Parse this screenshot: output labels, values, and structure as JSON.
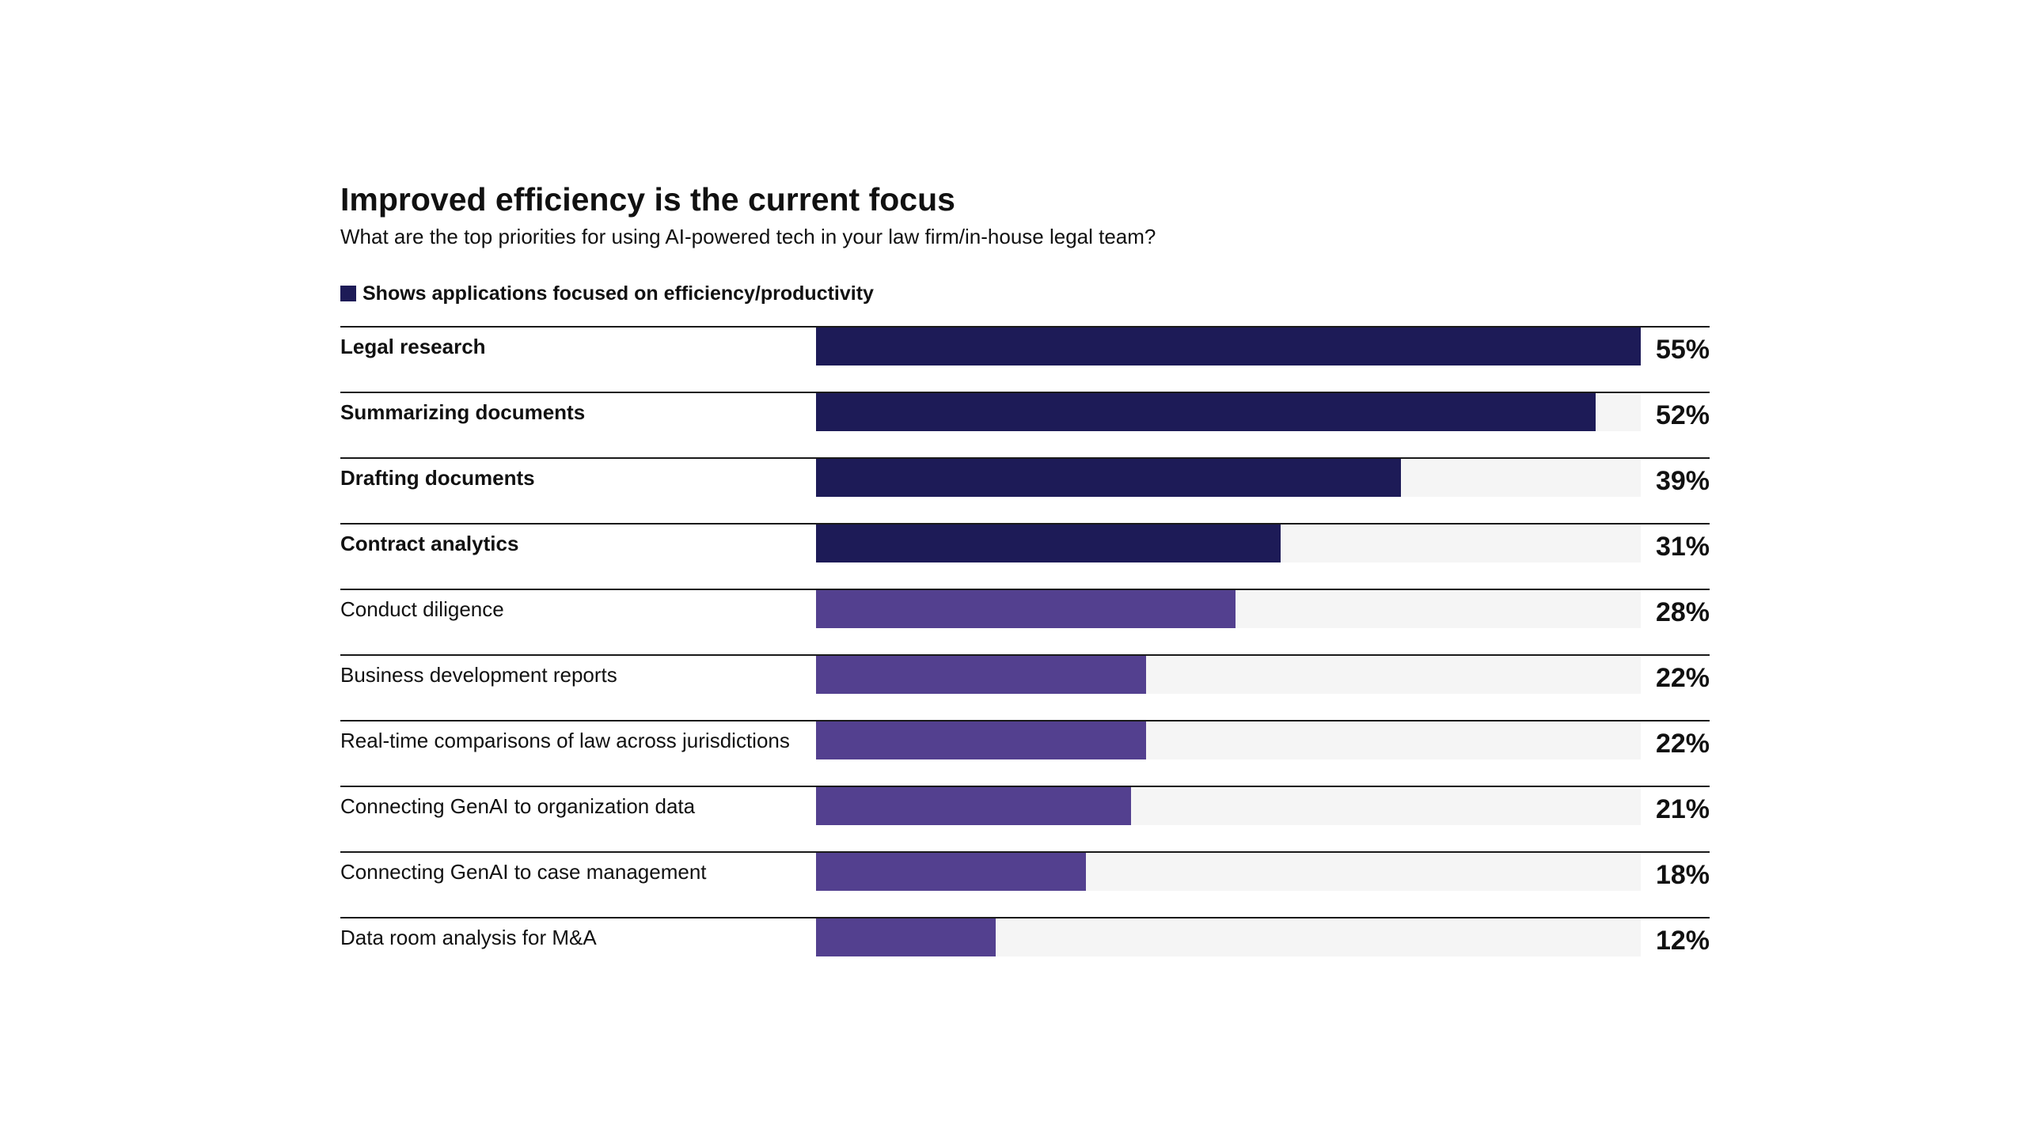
{
  "chart_data": {
    "type": "bar",
    "orientation": "horizontal",
    "title": "Improved efficiency is the current focus",
    "subtitle": "What are the top priorities for using AI-powered tech in your law firm/in-house legal team?",
    "legend": {
      "label": "Shows applications focused on efficiency/productivity",
      "color": "#1d1b57",
      "placement": "top-left"
    },
    "xlim": [
      0,
      55
    ],
    "grid": false,
    "colors": {
      "efficiency": "#1d1b57",
      "other": "#53408f",
      "track": "#f5f5f5"
    },
    "categories": [
      "Legal research",
      "Summarizing documents",
      "Drafting documents",
      "Contract analytics",
      "Conduct diligence",
      "Business development reports",
      "Real-time comparisons of law across jurisdictions",
      "Connecting GenAI to organization data",
      "Connecting GenAI to case management",
      "Data room analysis for M&A"
    ],
    "values": [
      55,
      52,
      39,
      31,
      28,
      22,
      22,
      21,
      18,
      12
    ],
    "value_labels": [
      "55%",
      "52%",
      "39%",
      "31%",
      "28%",
      "22%",
      "22%",
      "21%",
      "18%",
      "12%"
    ],
    "efficiency_focused": [
      true,
      true,
      true,
      true,
      false,
      false,
      false,
      false,
      false,
      false
    ]
  }
}
